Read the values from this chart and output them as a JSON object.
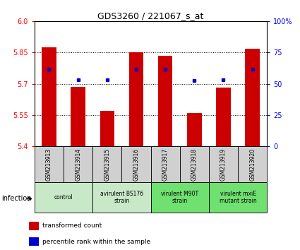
{
  "title": "GDS3260 / 221067_s_at",
  "samples": [
    "GSM213913",
    "GSM213914",
    "GSM213915",
    "GSM213916",
    "GSM213917",
    "GSM213918",
    "GSM213919",
    "GSM213920"
  ],
  "red_values": [
    5.875,
    5.685,
    5.57,
    5.85,
    5.835,
    5.558,
    5.68,
    5.868
  ],
  "blue_values": [
    5.77,
    5.72,
    5.72,
    5.77,
    5.77,
    5.715,
    5.72,
    5.77
  ],
  "ylim": [
    5.4,
    6.0
  ],
  "y2lim": [
    0,
    100
  ],
  "yticks": [
    5.4,
    5.55,
    5.7,
    5.85,
    6.0
  ],
  "y2ticks": [
    0,
    25,
    50,
    75,
    100
  ],
  "bar_color": "#cc0000",
  "dot_color": "#0000cc",
  "bar_width": 0.5,
  "groups": [
    {
      "label": "control",
      "indices": [
        0,
        1
      ],
      "color": "#c8e8c8"
    },
    {
      "label": "avirulent BS176\nstrain",
      "indices": [
        2,
        3
      ],
      "color": "#c8e8c8"
    },
    {
      "label": "virulent M90T\nstrain",
      "indices": [
        4,
        5
      ],
      "color": "#70e070"
    },
    {
      "label": "virulent mxiE\nmutant strain",
      "indices": [
        6,
        7
      ],
      "color": "#70e070"
    }
  ],
  "infection_label": "infection",
  "legend_red": "transformed count",
  "legend_blue": "percentile rank within the sample",
  "sample_box_color": "#d0d0d0"
}
